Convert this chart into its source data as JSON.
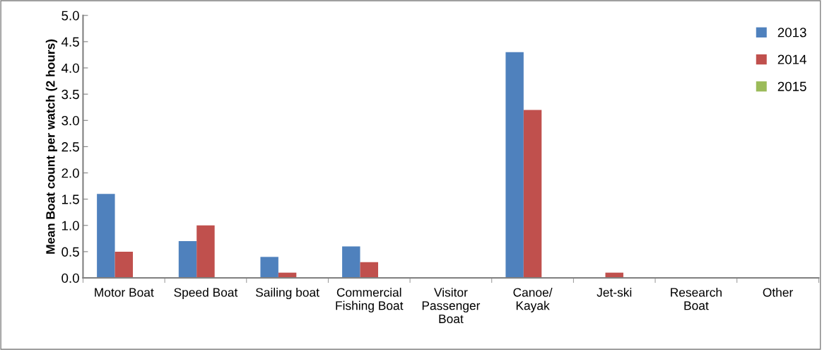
{
  "chart_data": {
    "type": "bar",
    "ylabel": "Mean Boat count per watch (2 hours)",
    "categories": [
      "Motor Boat",
      "Speed Boat",
      "Sailing boat",
      "Commercial\nFishing Boat",
      "Visitor\nPassenger\nBoat",
      "Canoe/\nKayak",
      "Jet-ski",
      "Research\nBoat",
      "Other"
    ],
    "series": [
      {
        "name": "2013",
        "color": "#4f81bd",
        "values": [
          1.6,
          0.7,
          0.4,
          0.6,
          0,
          4.3,
          0,
          0,
          0
        ]
      },
      {
        "name": "2014",
        "color": "#c0504d",
        "values": [
          0.5,
          1.0,
          0.1,
          0.3,
          0,
          3.2,
          0.1,
          0,
          0
        ]
      },
      {
        "name": "2015",
        "color": "#9bbb59",
        "values": [
          0,
          0,
          0,
          0,
          0,
          0,
          0,
          0,
          0
        ]
      }
    ],
    "ylim": [
      0,
      5.0
    ],
    "yticks": [
      {
        "value": 0,
        "label": "0.0"
      },
      {
        "value": 0.5,
        "label": "0.5"
      },
      {
        "value": 1,
        "label": "1.0"
      },
      {
        "value": 1.5,
        "label": "1.5"
      },
      {
        "value": 2,
        "label": "2.0"
      },
      {
        "value": 2.5,
        "label": "2.5"
      },
      {
        "value": 3,
        "label": "3.0"
      },
      {
        "value": 3.5,
        "label": "3.5"
      },
      {
        "value": 4,
        "label": "4.0"
      },
      {
        "value": 4.5,
        "label": "4.5"
      },
      {
        "value": 5,
        "label": "5.0"
      }
    ],
    "grid": false,
    "legend": "top right"
  }
}
